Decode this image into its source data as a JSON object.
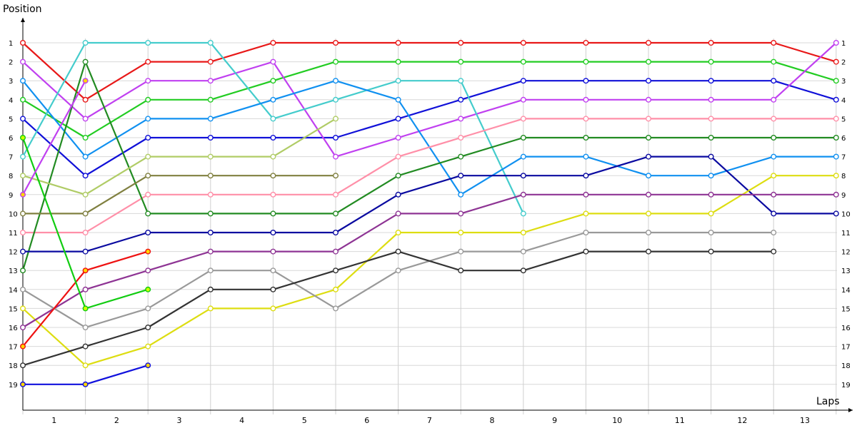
{
  "chart_data": {
    "type": "line",
    "ylabel": "Position",
    "xlabel": "Laps",
    "x_ticks": [
      "1",
      "2",
      "3",
      "4",
      "5",
      "6",
      "7",
      "8",
      "9",
      "10",
      "11",
      "12",
      "13"
    ],
    "y_ticks": [
      "1",
      "2",
      "3",
      "4",
      "5",
      "6",
      "7",
      "8",
      "9",
      "10",
      "11",
      "12",
      "13",
      "14",
      "15",
      "16",
      "17",
      "18",
      "19"
    ],
    "ylim": [
      19,
      1
    ],
    "y_inverted": true,
    "grid": true,
    "x": [
      0,
      1,
      2,
      3,
      4,
      5,
      6,
      7,
      8,
      9,
      10,
      11,
      12,
      13
    ],
    "series": [
      {
        "color": "#e81818",
        "values": [
          1,
          4,
          2,
          2,
          1,
          1,
          1,
          1,
          1,
          1,
          1,
          1,
          1,
          2
        ]
      },
      {
        "color": "#22cc22",
        "values": [
          4,
          6,
          4,
          4,
          3,
          2,
          2,
          2,
          2,
          2,
          2,
          2,
          2,
          3
        ]
      },
      {
        "color": "#1010d8",
        "values": [
          5,
          8,
          6,
          6,
          6,
          6,
          5,
          4,
          3,
          3,
          3,
          3,
          3,
          4
        ]
      },
      {
        "color": "#c040f0",
        "values": [
          2,
          5,
          3,
          3,
          2,
          7,
          6,
          5,
          4,
          4,
          4,
          4,
          4,
          1
        ]
      },
      {
        "color": "#44cccc",
        "values": [
          7,
          1,
          1,
          1,
          5,
          4,
          3,
          3,
          10,
          null,
          null,
          null,
          null,
          null
        ]
      },
      {
        "color": "#1090f0",
        "values": [
          3,
          7,
          5,
          5,
          4,
          3,
          4,
          9,
          7,
          7,
          8,
          8,
          7,
          7
        ]
      },
      {
        "color": "#ff8fa8",
        "values": [
          11,
          11,
          9,
          9,
          9,
          9,
          7,
          6,
          5,
          5,
          5,
          5,
          5,
          5
        ]
      },
      {
        "color": "#228b22",
        "values": [
          13,
          2,
          10,
          10,
          10,
          10,
          8,
          7,
          6,
          6,
          6,
          6,
          6,
          6
        ]
      },
      {
        "color": "#0a0aa0",
        "values": [
          12,
          12,
          11,
          11,
          11,
          11,
          9,
          8,
          8,
          8,
          7,
          7,
          10,
          10
        ]
      },
      {
        "color": "#dddd11",
        "values": [
          15,
          18,
          17,
          15,
          15,
          14,
          11,
          11,
          11,
          10,
          10,
          10,
          8,
          8
        ]
      },
      {
        "color": "#8e3494",
        "values": [
          16,
          14,
          13,
          12,
          12,
          12,
          10,
          10,
          9,
          9,
          9,
          9,
          9,
          9
        ]
      },
      {
        "color": "#999999",
        "values": [
          14,
          16,
          15,
          13,
          13,
          15,
          13,
          12,
          12,
          11,
          11,
          11,
          11,
          null
        ]
      },
      {
        "color": "#333333",
        "values": [
          18,
          17,
          16,
          14,
          14,
          13,
          12,
          13,
          13,
          12,
          12,
          12,
          12,
          null
        ]
      },
      {
        "color": "#b0cc66",
        "values": [
          8,
          9,
          7,
          7,
          7,
          5,
          null,
          null,
          null,
          null,
          null,
          null,
          null,
          null
        ]
      },
      {
        "color": "#808040",
        "values": [
          10,
          10,
          8,
          8,
          8,
          8,
          null,
          null,
          null,
          null,
          null,
          null,
          null,
          null
        ]
      },
      {
        "color": "#ee1111",
        "values": [
          17,
          13,
          12,
          null,
          null,
          null,
          null,
          null,
          null,
          null,
          null,
          null,
          null,
          null
        ],
        "marker_fill": "#ffd700"
      },
      {
        "color": "#11cc11",
        "values": [
          6,
          15,
          14,
          null,
          null,
          null,
          null,
          null,
          null,
          null,
          null,
          null,
          null,
          null
        ],
        "marker_fill": "#ccff00"
      },
      {
        "color": "#1111dd",
        "values": [
          19,
          19,
          18,
          null,
          null,
          null,
          null,
          null,
          null,
          null,
          null,
          null,
          null,
          null
        ],
        "marker_fill": "#ffd700"
      },
      {
        "color": "#c040f0",
        "values": [
          9,
          3,
          null,
          null,
          null,
          null,
          null,
          null,
          null,
          null,
          null,
          null,
          null,
          null
        ],
        "marker_fill": "#ffd700"
      }
    ]
  }
}
